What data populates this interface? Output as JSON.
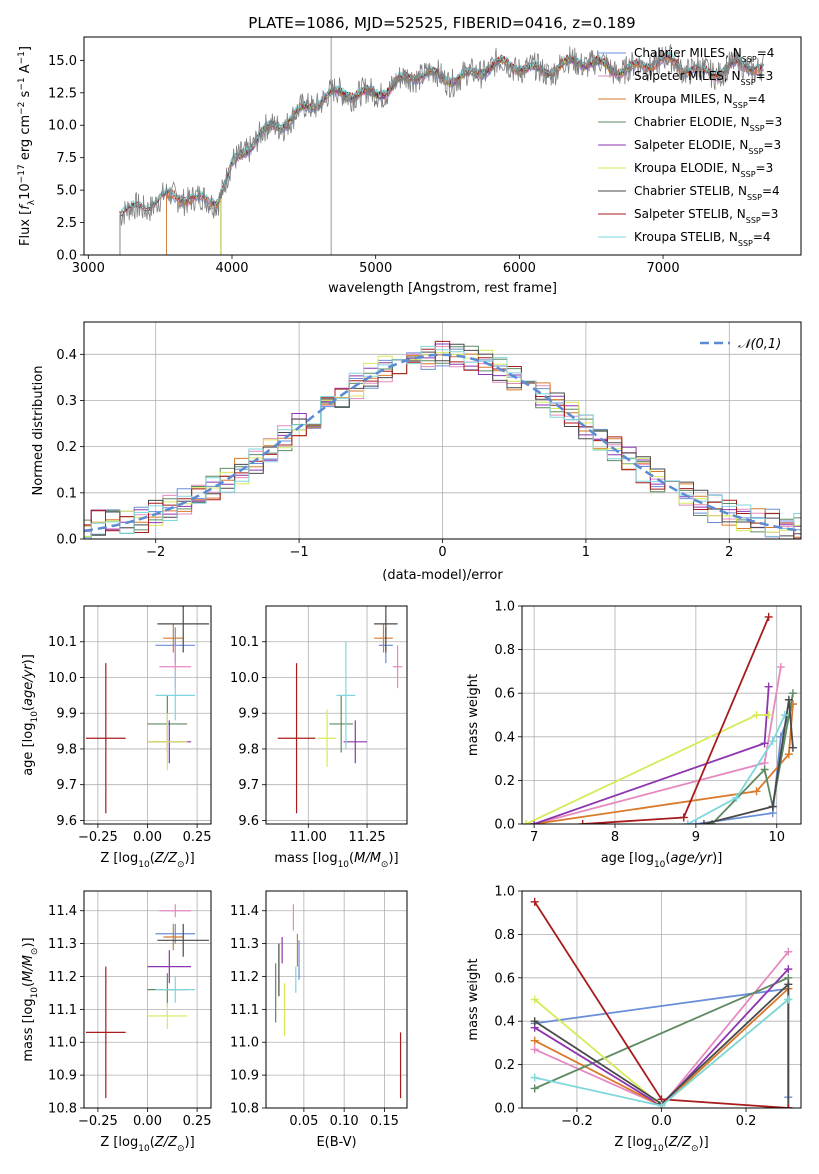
{
  "figure": {
    "title": "PLATE=1086, MJD=52525, FIBERID=0416, z=0.189",
    "series_names": [
      "Chabrier MILES, N_SSP=4",
      "Salpeter MILES, N_SSP=3",
      "Kroupa MILES, N_SSP=4",
      "Chabrier ELODIE, N_SSP=3",
      "Salpeter ELODIE, N_SSP=3",
      "Kroupa ELODIE, N_SSP=3",
      "Chabrier STELIB, N_SSP=4",
      "Salpeter STELIB, N_SSP=3",
      "Kroupa STELIB, N_SSP=4"
    ],
    "series_colors": [
      "#6a8fd8",
      "#e58ac0",
      "#d97a2b",
      "#5e8a62",
      "#8e35b0",
      "#d8ea5a",
      "#4a4a4a",
      "#a81c1c",
      "#7fd6dc"
    ]
  },
  "chart_data": [
    {
      "id": "spectrum",
      "type": "line",
      "xlabel": "wavelength [Angstrom, rest frame]",
      "ylabel": "Flux [f_λ10^-17 erg cm^-2 s^-1 A^-1]",
      "xlim": [
        2970,
        7960
      ],
      "ylim": [
        0,
        16.8
      ],
      "xticks": [
        3000,
        4000,
        5000,
        6000,
        7000
      ],
      "yticks": [
        0.0,
        2.5,
        5.0,
        7.5,
        10.0,
        12.5,
        15.0
      ],
      "legend_position": "upper-right",
      "legend": [
        {
          "prefix": "Chabrier MILES, N",
          "sub": "SSP",
          "suffix": "=4"
        },
        {
          "prefix": "Salpeter MILES, N",
          "sub": "SSP",
          "suffix": "=3"
        },
        {
          "prefix": "Kroupa MILES, N",
          "sub": "SSP",
          "suffix": "=4"
        },
        {
          "prefix": "Chabrier ELODIE, N",
          "sub": "SSP",
          "suffix": "=3"
        },
        {
          "prefix": "Salpeter ELODIE, N",
          "sub": "SSP",
          "suffix": "=3"
        },
        {
          "prefix": "Kroupa ELODIE, N",
          "sub": "SSP",
          "suffix": "=3"
        },
        {
          "prefix": "Chabrier STELIB, N",
          "sub": "SSP",
          "suffix": "=4"
        },
        {
          "prefix": "Salpeter STELIB, N",
          "sub": "SSP",
          "suffix": "=3"
        },
        {
          "prefix": "Kroupa STELIB, N",
          "sub": "SSP",
          "suffix": "=4"
        }
      ],
      "data_curve": {
        "color": "#808080",
        "x_start": 3220,
        "x_end": 7700
      },
      "model_x_start": [
        3540,
        3540,
        3540,
        3920,
        3920,
        3920,
        3220,
        3220,
        3220
      ],
      "model_x_end": [
        7700,
        7700,
        7700,
        6800,
        6800,
        6800,
        7700,
        7700,
        7700
      ],
      "continuum_x": [
        3220,
        3500,
        3900,
        4000,
        4300,
        4500,
        5000,
        5300,
        6000,
        6600,
        7000,
        7300,
        7700
      ],
      "continuum_y": [
        3.6,
        4.0,
        4.6,
        6.8,
        10.0,
        11.5,
        12.8,
        13.6,
        14.5,
        14.6,
        14.6,
        14.4,
        14.2
      ]
    },
    {
      "id": "residuals",
      "type": "histogram",
      "xlabel": "(data-model)/error",
      "ylabel": "Normed distribution",
      "xlim": [
        -2.5,
        2.5
      ],
      "ylim": [
        0,
        0.47
      ],
      "xticks": [
        -2,
        -1,
        0,
        1,
        2
      ],
      "yticks": [
        0.0,
        0.1,
        0.2,
        0.3,
        0.4
      ],
      "grid": true,
      "legend": "𝒩(0,1)",
      "legend_position": "upper-right",
      "bin_width": 0.1,
      "reference": {
        "type": "gaussian",
        "mean": 0,
        "sigma": 1,
        "color": "#5b8bd2",
        "dashed": true
      }
    },
    {
      "id": "age_vs_Z",
      "type": "errorbar",
      "xlabel": "Z [log10(Z/Z⊙)]",
      "ylabel": "age [log10(age/yr)]",
      "xlim": [
        -0.32,
        0.32
      ],
      "ylim": [
        9.59,
        10.2
      ],
      "xticks": [
        -0.25,
        0.0,
        0.25
      ],
      "yticks": [
        9.6,
        9.7,
        9.8,
        9.9,
        10.0,
        10.1
      ],
      "grid": true,
      "points": [
        {
          "x": 0.14,
          "y": 10.09,
          "xerr": 0.1,
          "yerr": 0.05
        },
        {
          "x": 0.14,
          "y": 10.03,
          "xerr": 0.08,
          "yerr": 0.06
        },
        {
          "x": 0.13,
          "y": 10.11,
          "xerr": 0.05,
          "yerr": 0.04
        },
        {
          "x": 0.1,
          "y": 9.87,
          "xerr": 0.1,
          "yerr": 0.08
        },
        {
          "x": 0.11,
          "y": 9.82,
          "xerr": 0.11,
          "yerr": 0.06
        },
        {
          "x": 0.1,
          "y": 9.82,
          "xerr": 0.1,
          "yerr": 0.08
        },
        {
          "x": 0.18,
          "y": 10.15,
          "xerr": 0.13,
          "yerr": 0.08
        },
        {
          "x": -0.21,
          "y": 9.83,
          "xerr": 0.1,
          "yerr": 0.21
        },
        {
          "x": 0.14,
          "y": 9.95,
          "xerr": 0.1,
          "yerr": 0.07
        }
      ]
    },
    {
      "id": "age_vs_mass",
      "type": "errorbar",
      "xlabel": "mass [log10(M/M⊙)]",
      "ylabel": "",
      "xlim": [
        10.82,
        11.42
      ],
      "ylim": [
        9.59,
        10.2
      ],
      "xticks": [
        11.0,
        11.25
      ],
      "yticks": [
        9.6,
        9.7,
        9.8,
        9.9,
        10.0,
        10.1
      ],
      "grid": true,
      "points": [
        {
          "x": 11.33,
          "y": 10.09,
          "xerr": 0.03,
          "yerr": 0.05
        },
        {
          "x": 11.38,
          "y": 10.03,
          "xerr": 0.02,
          "yerr": 0.06
        },
        {
          "x": 11.32,
          "y": 10.11,
          "xerr": 0.04,
          "yerr": 0.04
        },
        {
          "x": 11.14,
          "y": 9.87,
          "xerr": 0.05,
          "yerr": 0.08
        },
        {
          "x": 11.2,
          "y": 9.82,
          "xerr": 0.05,
          "yerr": 0.06
        },
        {
          "x": 11.08,
          "y": 9.83,
          "xerr": 0.04,
          "yerr": 0.08
        },
        {
          "x": 11.33,
          "y": 10.15,
          "xerr": 0.05,
          "yerr": 0.08
        },
        {
          "x": 10.95,
          "y": 9.83,
          "xerr": 0.08,
          "yerr": 0.21
        },
        {
          "x": 11.16,
          "y": 9.95,
          "xerr": 0.04,
          "yerr": 0.15
        }
      ]
    },
    {
      "id": "massweight_vs_age",
      "type": "line",
      "xlabel": "age [log10(age/yr)]",
      "ylabel": "mass weight",
      "xlim": [
        6.85,
        10.3
      ],
      "ylim": [
        0,
        1
      ],
      "xticks": [
        7,
        8,
        9,
        10
      ],
      "yticks": [
        0.0,
        0.2,
        0.4,
        0.6,
        0.8,
        1.0
      ],
      "grid": true,
      "series": [
        {
          "x": [
            9.0,
            9.95,
            10.05,
            10.2
          ],
          "y": [
            0.0,
            0.05,
            0.4,
            0.55
          ]
        },
        {
          "x": [
            7.0,
            9.85,
            10.05
          ],
          "y": [
            0.0,
            0.28,
            0.72
          ]
        },
        {
          "x": [
            7.0,
            9.75,
            10.15,
            10.2
          ],
          "y": [
            0.0,
            0.15,
            0.32,
            0.55
          ]
        },
        {
          "x": [
            9.2,
            9.85,
            9.95,
            10.2
          ],
          "y": [
            0.0,
            0.25,
            0.08,
            0.6
          ]
        },
        {
          "x": [
            7.0,
            9.85,
            9.9
          ],
          "y": [
            0.0,
            0.37,
            0.63
          ]
        },
        {
          "x": [
            6.9,
            9.75,
            9.9
          ],
          "y": [
            0.0,
            0.5,
            0.5
          ]
        },
        {
          "x": [
            9.1,
            9.95,
            10.15,
            10.2
          ],
          "y": [
            0.0,
            0.08,
            0.57,
            0.35
          ]
        },
        {
          "x": [
            7.6,
            8.85,
            9.9
          ],
          "y": [
            0.0,
            0.03,
            0.95
          ]
        },
        {
          "x": [
            8.9,
            9.5,
            9.95,
            10.1
          ],
          "y": [
            0.0,
            0.12,
            0.38,
            0.5
          ]
        }
      ]
    },
    {
      "id": "mass_vs_Z",
      "type": "errorbar",
      "xlabel": "Z [log10(Z/Z⊙)]",
      "ylabel": "mass [log10(M/M⊙)]",
      "xlim": [
        -0.32,
        0.32
      ],
      "ylim": [
        10.8,
        11.46
      ],
      "xticks": [
        -0.25,
        0.0,
        0.25
      ],
      "yticks": [
        10.8,
        10.9,
        11.0,
        11.1,
        11.2,
        11.3,
        11.4
      ],
      "grid": true,
      "points": [
        {
          "x": 0.14,
          "y": 11.33,
          "xerr": 0.1,
          "yerr": 0.03
        },
        {
          "x": 0.14,
          "y": 11.4,
          "xerr": 0.08,
          "yerr": 0.02
        },
        {
          "x": 0.13,
          "y": 11.32,
          "xerr": 0.05,
          "yerr": 0.04
        },
        {
          "x": 0.1,
          "y": 11.16,
          "xerr": 0.1,
          "yerr": 0.05
        },
        {
          "x": 0.11,
          "y": 11.23,
          "xerr": 0.11,
          "yerr": 0.05
        },
        {
          "x": 0.1,
          "y": 11.08,
          "xerr": 0.1,
          "yerr": 0.04
        },
        {
          "x": 0.18,
          "y": 11.31,
          "xerr": 0.13,
          "yerr": 0.05
        },
        {
          "x": -0.21,
          "y": 11.03,
          "xerr": 0.1,
          "yerr": 0.2
        },
        {
          "x": 0.14,
          "y": 11.16,
          "xerr": 0.1,
          "yerr": 0.04
        }
      ]
    },
    {
      "id": "mass_vs_ebv",
      "type": "errorbar",
      "xlabel": "E(B-V)",
      "ylabel": "",
      "xlim": [
        0.003,
        0.178
      ],
      "ylim": [
        10.8,
        11.46
      ],
      "xticks": [
        0.05,
        0.1,
        0.15
      ],
      "yticks": [
        10.8,
        10.9,
        11.0,
        11.1,
        11.2,
        11.3,
        11.4
      ],
      "grid": true,
      "points": [
        {
          "x": 0.044,
          "y": 11.25,
          "xerr": 0.0,
          "yerr": 0.06
        },
        {
          "x": 0.037,
          "y": 11.38,
          "xerr": 0.0,
          "yerr": 0.04
        },
        {
          "x": 0.042,
          "y": 11.28,
          "xerr": 0.0,
          "yerr": 0.05
        },
        {
          "x": 0.015,
          "y": 11.15,
          "xerr": 0.0,
          "yerr": 0.09
        },
        {
          "x": 0.023,
          "y": 11.28,
          "xerr": 0.0,
          "yerr": 0.04
        },
        {
          "x": 0.026,
          "y": 11.1,
          "xerr": 0.0,
          "yerr": 0.08
        },
        {
          "x": 0.019,
          "y": 11.22,
          "xerr": 0.0,
          "yerr": 0.08
        },
        {
          "x": 0.17,
          "y": 10.93,
          "xerr": 0.0,
          "yerr": 0.1
        },
        {
          "x": 0.04,
          "y": 11.19,
          "xerr": 0.0,
          "yerr": 0.04
        }
      ]
    },
    {
      "id": "massweight_vs_Z",
      "type": "line",
      "xlabel": "Z [log10(Z/Z⊙)]",
      "ylabel": "mass weight",
      "xlim": [
        -0.33,
        0.33
      ],
      "ylim": [
        0,
        1
      ],
      "xticks": [
        -0.2,
        0.0,
        0.2
      ],
      "yticks": [
        0.0,
        0.2,
        0.4,
        0.6,
        0.8,
        1.0
      ],
      "grid": true,
      "series": [
        {
          "x": [
            -0.3,
            0.3,
            0.3
          ],
          "y": [
            0.39,
            0.55,
            0.05
          ]
        },
        {
          "x": [
            -0.3,
            0.0,
            0.3
          ],
          "y": [
            0.27,
            0.01,
            0.72
          ]
        },
        {
          "x": [
            -0.3,
            0.0,
            0.3
          ],
          "y": [
            0.31,
            0.01,
            0.55
          ]
        },
        {
          "x": [
            -0.3,
            0.3,
            0.3
          ],
          "y": [
            0.09,
            0.6,
            0.0
          ]
        },
        {
          "x": [
            -0.3,
            0.0,
            0.3
          ],
          "y": [
            0.37,
            0.01,
            0.64
          ]
        },
        {
          "x": [
            -0.3,
            0.0,
            0.3
          ],
          "y": [
            0.5,
            0.01,
            0.5
          ]
        },
        {
          "x": [
            -0.3,
            0.0,
            0.3,
            0.3
          ],
          "y": [
            0.4,
            0.02,
            0.57,
            0.0
          ]
        },
        {
          "x": [
            -0.3,
            0.0,
            0.3
          ],
          "y": [
            0.95,
            0.04,
            0.0
          ]
        },
        {
          "x": [
            -0.3,
            0.0,
            0.3
          ],
          "y": [
            0.14,
            0.01,
            0.5
          ]
        }
      ]
    }
  ]
}
